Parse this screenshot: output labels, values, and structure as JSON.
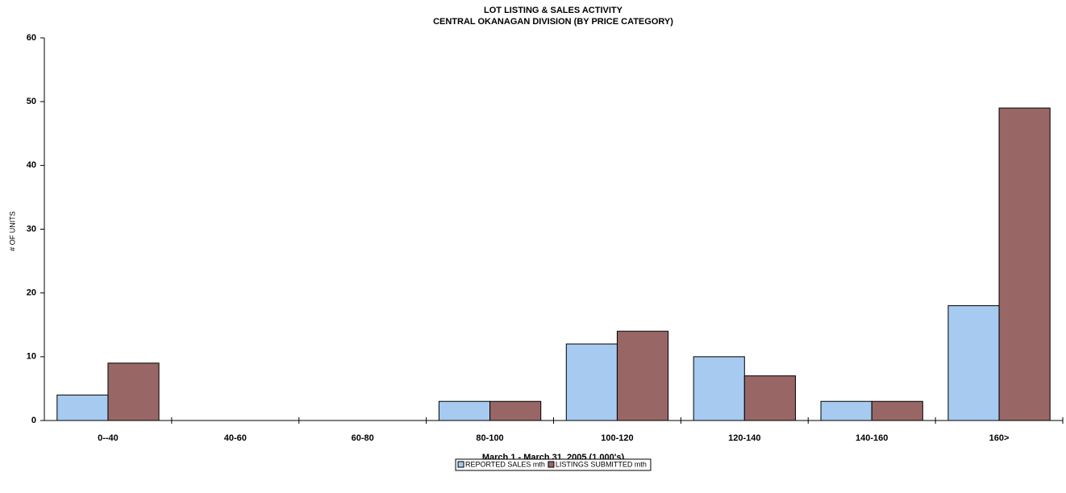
{
  "chart_data": {
    "type": "bar",
    "title": "LOT LISTING & SALES ACTIVITY",
    "subtitle": "CENTRAL OKANAGAN DIVISION (BY PRICE CATEGORY)",
    "x_label": "March 1 - March 31, 2005 (1,000's)",
    "y_label": "# OF UNITS",
    "categories": [
      "0--40",
      "40-60",
      "60-80",
      "80-100",
      "100-120",
      "120-140",
      "140-160",
      "160>"
    ],
    "series": [
      {
        "name": "REPORTED SALES mth",
        "color": "#a6caf0",
        "values": [
          4,
          0,
          0,
          3,
          12,
          10,
          3,
          18
        ]
      },
      {
        "name": "LISTINGS SUBMITTED mth",
        "color": "#996666",
        "values": [
          9,
          0,
          0,
          3,
          14,
          7,
          3,
          49
        ]
      }
    ],
    "ylim": [
      0,
      60
    ],
    "yticks": [
      0,
      10,
      20,
      30,
      40,
      50,
      60
    ],
    "legend": "bottom"
  }
}
